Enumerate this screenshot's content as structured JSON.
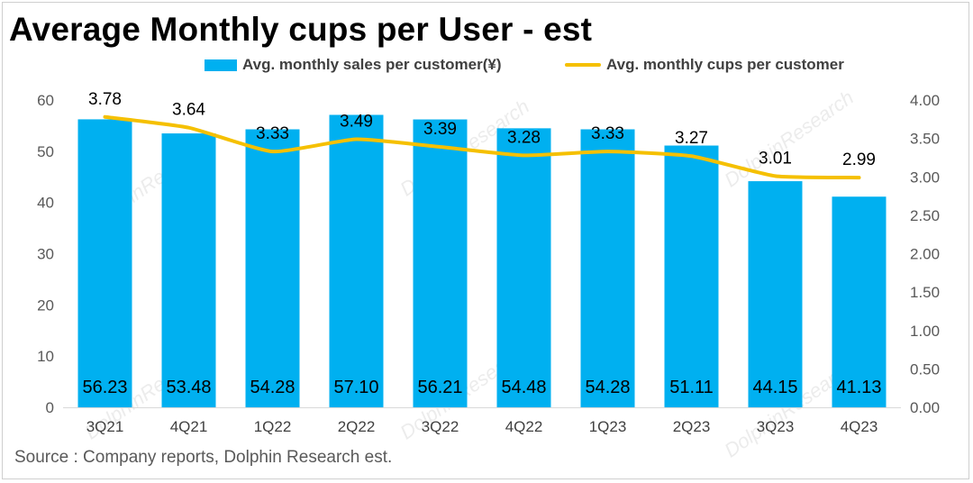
{
  "title": "Average Monthly cups per User - est",
  "source": "Source : Company reports, Dolphin Research est.",
  "legend": {
    "bar_label": "Avg. monthly sales per customer(¥)",
    "line_label": "Avg. monthly cups per customer"
  },
  "colors": {
    "bar": "#00b0f0",
    "line": "#f5c000"
  },
  "watermark": {
    "text": "DolphinResearch"
  },
  "chart_data": {
    "type": "bar",
    "title": "Average Monthly cups per User - est",
    "categories": [
      "3Q21",
      "4Q21",
      "1Q22",
      "2Q22",
      "3Q22",
      "4Q22",
      "1Q23",
      "2Q23",
      "3Q23",
      "4Q23"
    ],
    "series": [
      {
        "name": "Avg. monthly sales per customer(¥)",
        "type": "bar",
        "axis": "left",
        "values": [
          56.23,
          53.48,
          54.28,
          57.1,
          56.21,
          54.48,
          54.28,
          51.11,
          44.15,
          41.13
        ],
        "labels": [
          "56.23",
          "53.48",
          "54.28",
          "57.10",
          "56.21",
          "54.48",
          "54.28",
          "51.11",
          "44.15",
          "41.13"
        ]
      },
      {
        "name": "Avg. monthly cups per customer",
        "type": "line",
        "axis": "right",
        "values": [
          3.78,
          3.64,
          3.33,
          3.49,
          3.39,
          3.28,
          3.33,
          3.27,
          3.01,
          2.99
        ],
        "labels": [
          "3.78",
          "3.64",
          "3.33",
          "3.49",
          "3.39",
          "3.28",
          "3.33",
          "3.27",
          "3.01",
          "2.99"
        ]
      }
    ],
    "y_left": {
      "min": 0,
      "max": 60,
      "ticks": [
        "0",
        "10",
        "20",
        "30",
        "40",
        "50",
        "60"
      ]
    },
    "y_right": {
      "min": 0,
      "max": 4,
      "ticks": [
        "0.00",
        "0.50",
        "1.00",
        "1.50",
        "2.00",
        "2.50",
        "3.00",
        "3.50",
        "4.00"
      ]
    },
    "grid": false,
    "legend_position": "top"
  }
}
